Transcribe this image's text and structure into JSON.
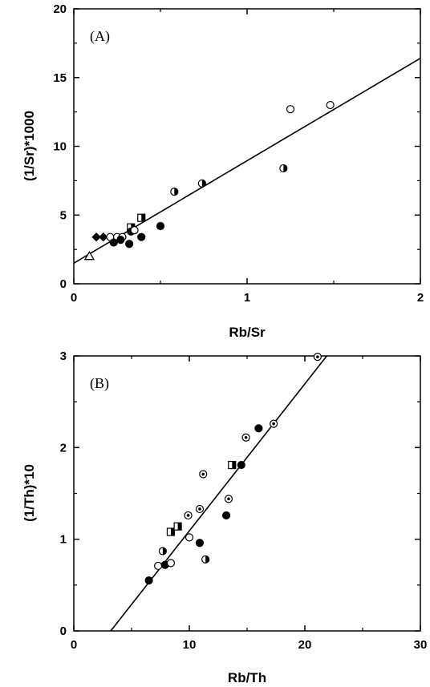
{
  "chart_data": [
    {
      "type": "scatter",
      "panel_label": "(A)",
      "xlabel": "Rb/Sr",
      "ylabel": "(1/Sr)*1000",
      "xlim": [
        0,
        2
      ],
      "ylim": [
        0,
        20
      ],
      "x_ticks": [
        "0",
        "1",
        "2"
      ],
      "y_ticks": [
        "0",
        "5",
        "10",
        "15",
        "20"
      ],
      "fit_line": {
        "x": [
          0,
          2
        ],
        "y": [
          1.5,
          16.4
        ]
      },
      "points": [
        {
          "x": 0.09,
          "y": 2.0,
          "marker": "triangle-open"
        },
        {
          "x": 0.13,
          "y": 3.4,
          "marker": "diamond-filled"
        },
        {
          "x": 0.17,
          "y": 3.4,
          "marker": "diamond-filled"
        },
        {
          "x": 0.21,
          "y": 3.4,
          "marker": "circle-open"
        },
        {
          "x": 0.25,
          "y": 3.4,
          "marker": "circle-open"
        },
        {
          "x": 0.28,
          "y": 3.4,
          "marker": "circle-open"
        },
        {
          "x": 0.23,
          "y": 3.0,
          "marker": "circle-filled"
        },
        {
          "x": 0.27,
          "y": 3.2,
          "marker": "circle-filled"
        },
        {
          "x": 0.32,
          "y": 2.9,
          "marker": "circle-filled"
        },
        {
          "x": 0.33,
          "y": 4.1,
          "marker": "square-half"
        },
        {
          "x": 0.33,
          "y": 3.8,
          "marker": "circle-filled"
        },
        {
          "x": 0.35,
          "y": 3.9,
          "marker": "circle-open"
        },
        {
          "x": 0.39,
          "y": 4.8,
          "marker": "square-half"
        },
        {
          "x": 0.39,
          "y": 3.4,
          "marker": "circle-filled"
        },
        {
          "x": 0.5,
          "y": 4.2,
          "marker": "circle-filled"
        },
        {
          "x": 0.58,
          "y": 6.7,
          "marker": "circle-half"
        },
        {
          "x": 0.74,
          "y": 7.3,
          "marker": "circle-half"
        },
        {
          "x": 1.21,
          "y": 8.4,
          "marker": "circle-half"
        },
        {
          "x": 1.25,
          "y": 12.7,
          "marker": "circle-open"
        },
        {
          "x": 1.48,
          "y": 13.0,
          "marker": "circle-open"
        }
      ]
    },
    {
      "type": "scatter",
      "panel_label": "(B)",
      "xlabel": "Rb/Th",
      "ylabel": "(1/Th)*10",
      "xlim": [
        0,
        30
      ],
      "ylim": [
        0,
        3
      ],
      "x_ticks": [
        "0",
        "10",
        "20",
        "30"
      ],
      "y_ticks": [
        "0",
        "1",
        "2",
        "3"
      ],
      "fit_line": {
        "x": [
          3.2,
          21.9
        ],
        "y": [
          0,
          3
        ]
      },
      "points": [
        {
          "x": 6.5,
          "y": 0.55,
          "marker": "circle-filled"
        },
        {
          "x": 7.3,
          "y": 0.71,
          "marker": "circle-open"
        },
        {
          "x": 7.9,
          "y": 0.72,
          "marker": "circle-filled"
        },
        {
          "x": 8.4,
          "y": 0.74,
          "marker": "circle-open"
        },
        {
          "x": 7.7,
          "y": 0.87,
          "marker": "circle-half"
        },
        {
          "x": 8.4,
          "y": 1.08,
          "marker": "square-half"
        },
        {
          "x": 9.0,
          "y": 1.14,
          "marker": "square-half"
        },
        {
          "x": 10.0,
          "y": 1.02,
          "marker": "circle-open"
        },
        {
          "x": 9.9,
          "y": 1.26,
          "marker": "circle-dot"
        },
        {
          "x": 10.9,
          "y": 0.96,
          "marker": "circle-filled"
        },
        {
          "x": 10.9,
          "y": 1.33,
          "marker": "circle-dot"
        },
        {
          "x": 11.4,
          "y": 0.78,
          "marker": "circle-half"
        },
        {
          "x": 11.2,
          "y": 1.71,
          "marker": "circle-dot"
        },
        {
          "x": 13.2,
          "y": 1.26,
          "marker": "circle-filled"
        },
        {
          "x": 13.4,
          "y": 1.44,
          "marker": "circle-dot"
        },
        {
          "x": 13.7,
          "y": 1.81,
          "marker": "square-half"
        },
        {
          "x": 14.5,
          "y": 1.81,
          "marker": "circle-filled"
        },
        {
          "x": 14.9,
          "y": 2.11,
          "marker": "circle-dot"
        },
        {
          "x": 16.0,
          "y": 2.21,
          "marker": "circle-filled"
        },
        {
          "x": 17.3,
          "y": 2.26,
          "marker": "circle-dot"
        },
        {
          "x": 21.1,
          "y": 2.99,
          "marker": "circle-dot"
        }
      ]
    }
  ]
}
